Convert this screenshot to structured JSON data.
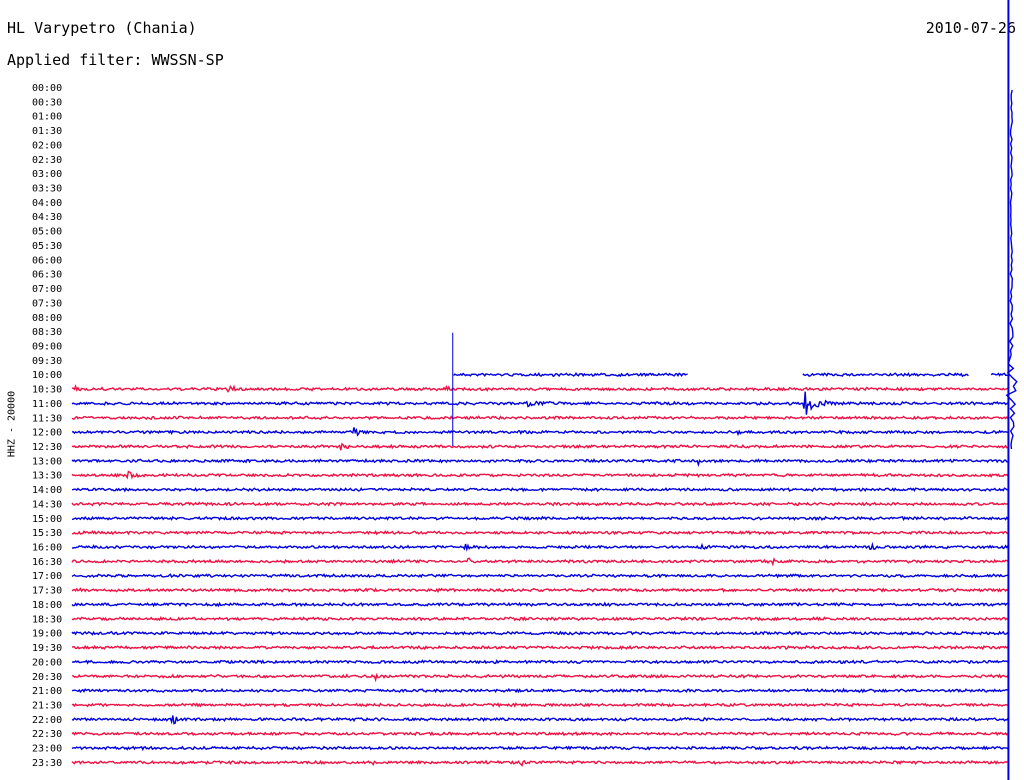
{
  "header": {
    "station": "HL Varypetro (Chania)",
    "filter": "Applied filter: WWSSN-SP",
    "date": "2010-07-26"
  },
  "colors": {
    "blue": "#0000dd",
    "red": "#ee1144",
    "text": "#000000"
  },
  "chart_data": {
    "type": "line",
    "subtype": "helicorder",
    "title": "HL Varypetro (Chania)",
    "ylabel": "HHZ - 20000",
    "y_tick_labels": [
      "00:00",
      "00:30",
      "01:00",
      "01:30",
      "02:00",
      "02:30",
      "03:00",
      "03:30",
      "04:00",
      "04:30",
      "05:00",
      "05:30",
      "06:00",
      "06:30",
      "07:00",
      "07:30",
      "08:00",
      "08:30",
      "09:00",
      "09:30",
      "10:00",
      "10:30",
      "11:00",
      "11:30",
      "12:00",
      "12:30",
      "13:00",
      "13:30",
      "14:00",
      "14:30",
      "15:00",
      "15:30",
      "16:00",
      "16:30",
      "17:00",
      "17:30",
      "18:00",
      "18:30",
      "19:00",
      "19:30",
      "20:00",
      "20:30",
      "21:00",
      "21:30",
      "22:00",
      "22:30",
      "23:00",
      "23:30"
    ],
    "row_minutes": 30,
    "first_recorded_row": "10:00",
    "series_colors_alternating": [
      "blue",
      "red"
    ],
    "data_gaps": [
      {
        "row": "10:00",
        "from_min": 0,
        "to_min": 12.1
      },
      {
        "row": "10:00",
        "from_min": 19.6,
        "to_min": 23.2
      },
      {
        "row": "10:00",
        "from_min": 28.5,
        "to_min": 29.2
      }
    ],
    "events": [
      {
        "row": "10:30",
        "min": 0.1,
        "amp": 5,
        "dur": 0.25,
        "kind": "onset"
      },
      {
        "row": "10:30",
        "min": 5.0,
        "amp": 2.5,
        "dur": 0.6,
        "kind": "burst"
      },
      {
        "row": "10:30",
        "min": 11.8,
        "amp": 2,
        "dur": 0.5,
        "kind": "burst"
      },
      {
        "row": "10:00",
        "min": 12.1,
        "amp": 42,
        "dur": 0.05,
        "kind": "spike"
      },
      {
        "row": "11:00",
        "min": 14.5,
        "amp": 2,
        "dur": 1.0,
        "kind": "burst"
      },
      {
        "row": "11:00",
        "min": 23.3,
        "amp": 12,
        "dur": 0.9,
        "kind": "quake"
      },
      {
        "row": "12:00",
        "min": 9.0,
        "amp": 4,
        "dur": 0.4,
        "kind": "burst"
      },
      {
        "row": "12:00",
        "min": 21.2,
        "amp": 3,
        "dur": 0.3,
        "kind": "burst"
      },
      {
        "row": "12:30",
        "min": 8.5,
        "amp": 3,
        "dur": 0.5,
        "kind": "burst"
      },
      {
        "row": "13:00",
        "min": 19.9,
        "amp": 4,
        "dur": 0.1,
        "kind": "burst"
      },
      {
        "row": "13:30",
        "min": 1.8,
        "amp": 3,
        "dur": 0.4,
        "kind": "burst"
      },
      {
        "row": "16:00",
        "min": 12.5,
        "amp": 2,
        "dur": 0.5,
        "kind": "burst"
      },
      {
        "row": "16:00",
        "min": 20.0,
        "amp": 2,
        "dur": 0.5,
        "kind": "burst"
      },
      {
        "row": "16:00",
        "min": 25.4,
        "amp": 3,
        "dur": 0.3,
        "kind": "burst"
      },
      {
        "row": "16:30",
        "min": 12.6,
        "amp": 3,
        "dur": 0.2,
        "kind": "burst"
      },
      {
        "row": "16:30",
        "min": 22.3,
        "amp": 2,
        "dur": 0.4,
        "kind": "burst"
      },
      {
        "row": "17:30",
        "min": 29.9,
        "amp": 6,
        "dur": 0.3,
        "kind": "burst"
      },
      {
        "row": "18:30",
        "min": 13.8,
        "amp": 2,
        "dur": 0.2,
        "kind": "burst"
      },
      {
        "row": "20:30",
        "min": 9.6,
        "amp": 3,
        "dur": 0.5,
        "kind": "burst"
      },
      {
        "row": "22:00",
        "min": 3.2,
        "amp": 4,
        "dur": 0.5,
        "kind": "burst"
      },
      {
        "row": "23:30",
        "min": 9.6,
        "amp": 2,
        "dur": 0.1,
        "kind": "burst"
      },
      {
        "row": "23:30",
        "min": 14.3,
        "amp": 2,
        "dur": 0.1,
        "kind": "burst"
      }
    ],
    "big_event": {
      "row": "10:30",
      "min": 29.95,
      "kind": "large earthquake, trace saturated (all rows)"
    },
    "grid": false
  }
}
